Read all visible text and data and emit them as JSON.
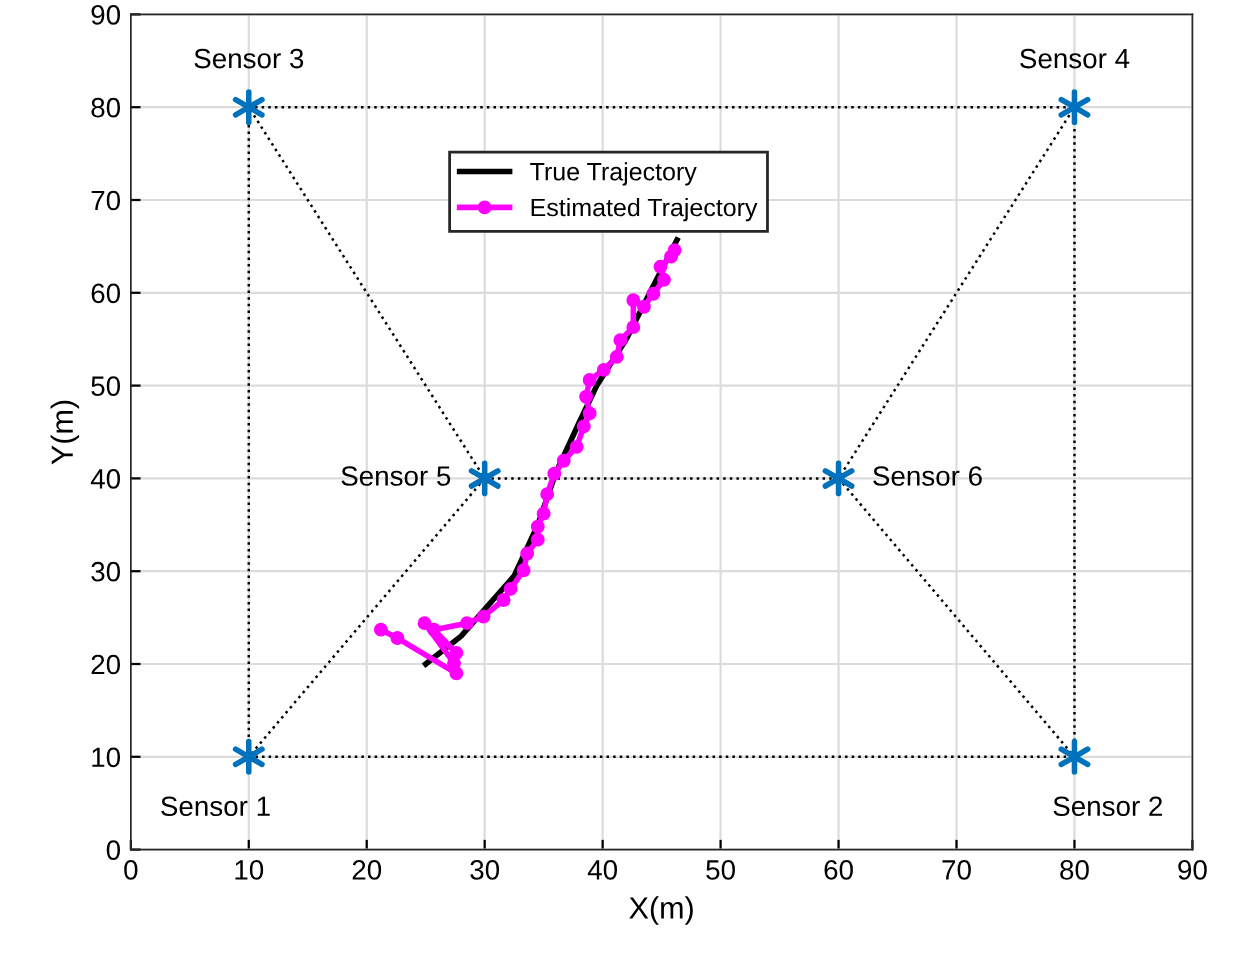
{
  "chart_data": {
    "type": "line",
    "xlabel": "X(m)",
    "ylabel": "Y(m)",
    "xlim": [
      0,
      90
    ],
    "ylim": [
      0,
      90
    ],
    "xticks": [
      0,
      10,
      20,
      30,
      40,
      50,
      60,
      70,
      80,
      90
    ],
    "yticks": [
      0,
      10,
      20,
      30,
      40,
      50,
      60,
      70,
      80,
      90
    ],
    "grid": true,
    "legend": "top",
    "series": [
      {
        "color": "#000000",
        "line_style": "dotted",
        "marker": "none",
        "x": [
          10,
          80,
          80,
          10,
          10,
          30,
          10
        ],
        "values": [
          10,
          10,
          80,
          80,
          10,
          40,
          80
        ]
      },
      {
        "color": "#000000",
        "line_style": "dotted",
        "marker": "none",
        "x": [
          30,
          60,
          80
        ],
        "values": [
          40,
          40,
          80
        ]
      },
      {
        "color": "#000000",
        "line_style": "dotted",
        "marker": "none",
        "x": [
          60,
          80
        ],
        "values": [
          40,
          10
        ]
      },
      {
        "name": "True Trajectory",
        "color": "#000000",
        "line_style": "solid",
        "marker": "none",
        "x": [
          25,
          28,
          32.5,
          34.5,
          36,
          38,
          39.5,
          42,
          44,
          46.3
        ],
        "values": [
          20,
          23,
          29.5,
          35,
          40.5,
          46,
          50,
          55,
          60,
          65.7
        ]
      },
      {
        "name": "Estimated Trajectory",
        "color": "#ff00ff",
        "line_style": "solid",
        "marker": "circle",
        "x": [
          21.2,
          22.6,
          27.6,
          27.4,
          24.9,
          27.6,
          25.7,
          28.5,
          29.9,
          31.6,
          32.2,
          33.3,
          33.6,
          34.5,
          34.5,
          35.0,
          35.3,
          35.9,
          36.7,
          37.8,
          38.4,
          38.9,
          38.6,
          38.9,
          40.1,
          41.2,
          41.5,
          42.6,
          42.6,
          43.5,
          44.3,
          45.2,
          44.9,
          45.8,
          46.1
        ],
        "values": [
          23.7,
          22.8,
          19.0,
          20.1,
          24.4,
          21.2,
          23.7,
          24.4,
          25.1,
          26.9,
          28.1,
          30.1,
          31.9,
          33.4,
          34.8,
          36.2,
          38.3,
          40.5,
          41.9,
          43.4,
          45.6,
          47.0,
          48.8,
          50.6,
          51.7,
          53.1,
          54.9,
          56.3,
          59.2,
          58.5,
          59.9,
          61.4,
          62.8,
          63.9,
          64.6
        ]
      },
      {
        "type": "scatter",
        "color": "#0072bd",
        "marker": "cross",
        "x": [
          10,
          80,
          10,
          80,
          30,
          60
        ],
        "values": [
          10,
          10,
          80,
          80,
          40,
          40
        ]
      }
    ],
    "annotations": [
      {
        "text": "Sensor 1",
        "x": 10,
        "y": 10
      },
      {
        "text": "Sensor 2",
        "x": 80,
        "y": 10
      },
      {
        "text": "Sensor 3",
        "x": 10,
        "y": 80
      },
      {
        "text": "Sensor 4",
        "x": 80,
        "y": 80
      },
      {
        "text": "Sensor 5",
        "x": 30,
        "y": 40
      },
      {
        "text": "Sensor 6",
        "x": 60,
        "y": 40
      }
    ]
  }
}
